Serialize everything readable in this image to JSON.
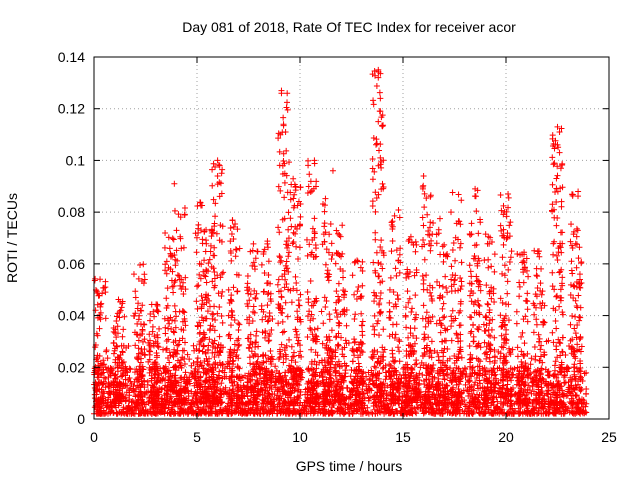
{
  "chart_data": {
    "type": "scatter",
    "title": "Day 081 of 2018, Rate Of TEC Index for receiver acor",
    "xlabel": "GPS time / hours",
    "ylabel": "ROTI / TECUs",
    "xlim": [
      0,
      25
    ],
    "ylim": [
      0,
      0.14
    ],
    "xticks": [
      0,
      5,
      10,
      15,
      20,
      25
    ],
    "yticks": [
      0,
      0.02,
      0.04,
      0.06,
      0.08,
      0.1,
      0.12,
      0.14
    ],
    "xtick_labels": [
      "0",
      "5",
      "10",
      "15",
      "20",
      "25"
    ],
    "ytick_labels": [
      "0",
      "0.02",
      "0.04",
      "0.06",
      "0.08",
      "0.1",
      "0.12",
      "0.14"
    ],
    "grid": true,
    "marker": "+",
    "marker_color": "#ff0000",
    "time_span_hours": [
      0,
      23.9
    ],
    "baseline_range": [
      0.002,
      0.02
    ],
    "notable_points": [
      {
        "x": 9.1,
        "y": 0.127
      },
      {
        "x": 9.1,
        "y": 0.126
      },
      {
        "x": 9.2,
        "y": 0.114
      },
      {
        "x": 9.3,
        "y": 0.111
      },
      {
        "x": 13.8,
        "y": 0.135
      },
      {
        "x": 13.8,
        "y": 0.132
      },
      {
        "x": 13.9,
        "y": 0.124
      },
      {
        "x": 13.9,
        "y": 0.119
      },
      {
        "x": 13.8,
        "y": 0.115
      },
      {
        "x": 13.9,
        "y": 0.101
      },
      {
        "x": 22.5,
        "y": 0.113
      },
      {
        "x": 22.6,
        "y": 0.111
      },
      {
        "x": 22.5,
        "y": 0.106
      },
      {
        "x": 22.6,
        "y": 0.103
      },
      {
        "x": 6.0,
        "y": 0.1
      },
      {
        "x": 6.1,
        "y": 0.098
      },
      {
        "x": 6.0,
        "y": 0.094
      },
      {
        "x": 10.7,
        "y": 0.1
      },
      {
        "x": 3.9,
        "y": 0.091
      },
      {
        "x": 23.5,
        "y": 0.088
      },
      {
        "x": 11.6,
        "y": 0.096
      },
      {
        "x": 16.0,
        "y": 0.094
      },
      {
        "x": 18.5,
        "y": 0.089
      },
      {
        "x": 20.1,
        "y": 0.087
      }
    ],
    "bursts": [
      {
        "x": 0.3,
        "peak": 0.056
      },
      {
        "x": 1.2,
        "peak": 0.047
      },
      {
        "x": 2.2,
        "peak": 0.06
      },
      {
        "x": 2.9,
        "peak": 0.045
      },
      {
        "x": 3.7,
        "peak": 0.072
      },
      {
        "x": 4.2,
        "peak": 0.082
      },
      {
        "x": 5.2,
        "peak": 0.085
      },
      {
        "x": 5.6,
        "peak": 0.075
      },
      {
        "x": 6.0,
        "peak": 0.1
      },
      {
        "x": 6.8,
        "peak": 0.078
      },
      {
        "x": 7.7,
        "peak": 0.068
      },
      {
        "x": 8.4,
        "peak": 0.07
      },
      {
        "x": 9.2,
        "peak": 0.127
      },
      {
        "x": 9.8,
        "peak": 0.093
      },
      {
        "x": 10.6,
        "peak": 0.1
      },
      {
        "x": 11.3,
        "peak": 0.086
      },
      {
        "x": 12.0,
        "peak": 0.076
      },
      {
        "x": 12.8,
        "peak": 0.064
      },
      {
        "x": 13.8,
        "peak": 0.135
      },
      {
        "x": 14.6,
        "peak": 0.081
      },
      {
        "x": 15.4,
        "peak": 0.072
      },
      {
        "x": 16.2,
        "peak": 0.094
      },
      {
        "x": 16.9,
        "peak": 0.078
      },
      {
        "x": 17.6,
        "peak": 0.09
      },
      {
        "x": 18.5,
        "peak": 0.089
      },
      {
        "x": 19.2,
        "peak": 0.073
      },
      {
        "x": 20.0,
        "peak": 0.087
      },
      {
        "x": 20.8,
        "peak": 0.065
      },
      {
        "x": 21.6,
        "peak": 0.066
      },
      {
        "x": 22.5,
        "peak": 0.113
      },
      {
        "x": 23.4,
        "peak": 0.088
      }
    ]
  }
}
